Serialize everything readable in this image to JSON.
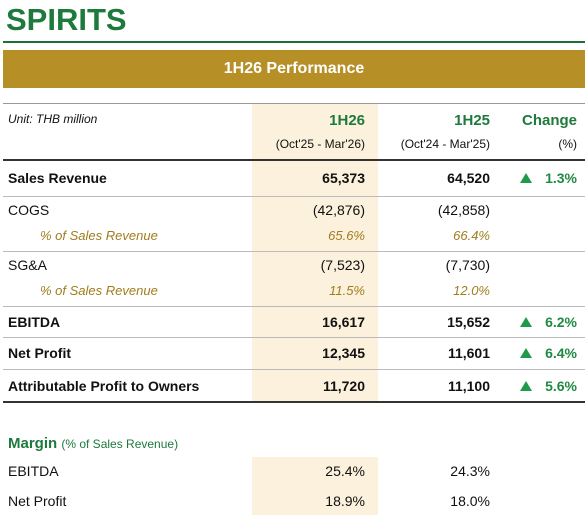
{
  "title": "SPIRITS",
  "banner": "1H26 Performance",
  "header": {
    "unit": "Unit: THB million",
    "col1": "1H26",
    "col1_sub": "(Oct'25 - Mar'26)",
    "col2": "1H25",
    "col2_sub": "(Oct'24 - Mar'25)",
    "change": "Change",
    "change_sub": "(%)"
  },
  "rows": [
    {
      "label": "Sales Revenue",
      "values": [
        "65,373",
        "64,520"
      ],
      "change": "1.3%"
    },
    {
      "label": "COGS",
      "values": [
        "(42,876)",
        "(42,858)"
      ]
    },
    {
      "label": "% of Sales Revenue",
      "values": [
        "65.6%",
        "66.4%"
      ]
    },
    {
      "label": "SG&A",
      "values": [
        "(7,523)",
        "(7,730)"
      ]
    },
    {
      "label": "% of Sales Revenue",
      "values": [
        "11.5%",
        "12.0%"
      ]
    },
    {
      "label": "EBITDA",
      "values": [
        "16,617",
        "15,652"
      ],
      "change": "6.2%"
    },
    {
      "label": "Net Profit",
      "values": [
        "12,345",
        "11,601"
      ],
      "change": "6.4%"
    },
    {
      "label": "Attributable Profit to Owners",
      "values": [
        "11,720",
        "11,100"
      ],
      "change": "5.6%"
    }
  ],
  "margin": {
    "title": "Margin",
    "note": "(% of Sales Revenue)",
    "rows": [
      {
        "label": "EBITDA",
        "values": [
          "25.4%",
          "24.3%"
        ]
      },
      {
        "label": "Net Profit",
        "values": [
          "18.9%",
          "18.0%"
        ]
      }
    ]
  }
}
